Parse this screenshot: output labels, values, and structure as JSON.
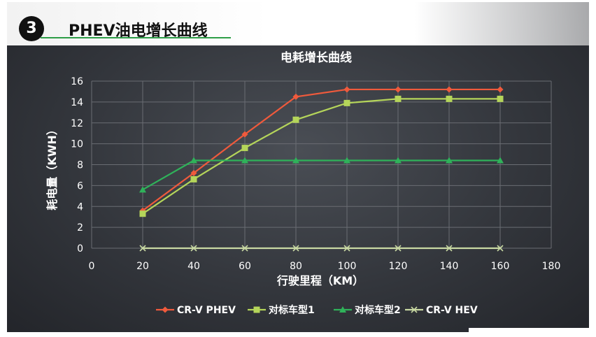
{
  "header": {
    "badge_number": "3",
    "title": "PHEV油电增长曲线"
  },
  "colors": {
    "slide_bg": "#33363c",
    "header_rule": "#2e9e47",
    "axis_text": "#ffffff",
    "grid": "#6a6d73"
  },
  "chart_data": {
    "type": "line",
    "title": "电耗增长曲线",
    "xlabel": "行驶里程（KM）",
    "ylabel": "耗电量（KWH）",
    "xlim": [
      0,
      180
    ],
    "ylim": [
      0,
      16
    ],
    "x_ticks": [
      0,
      20,
      40,
      60,
      80,
      100,
      120,
      140,
      160,
      180
    ],
    "y_ticks": [
      0,
      2,
      4,
      6,
      8,
      10,
      12,
      14,
      16
    ],
    "grid": true,
    "legend_position": "bottom",
    "x": [
      20,
      40,
      60,
      80,
      100,
      120,
      140,
      160
    ],
    "series": [
      {
        "name": "CR-V PHEV",
        "marker": "diamond",
        "color": "#f05a3c",
        "values": [
          3.6,
          7.2,
          10.9,
          14.5,
          15.2,
          15.2,
          15.2,
          15.2
        ]
      },
      {
        "name": "对标车型1",
        "marker": "square",
        "color": "#b5d55a",
        "values": [
          3.3,
          6.6,
          9.6,
          12.3,
          13.9,
          14.3,
          14.3,
          14.3
        ]
      },
      {
        "name": "对标车型2",
        "marker": "triangle",
        "color": "#2fb25a",
        "values": [
          5.6,
          8.4,
          8.4,
          8.4,
          8.4,
          8.4,
          8.4,
          8.4
        ]
      },
      {
        "name": "CR-V HEV",
        "marker": "x",
        "color": "#c9d9a3",
        "values": [
          0,
          0,
          0,
          0,
          0,
          0,
          0,
          0
        ]
      }
    ]
  }
}
